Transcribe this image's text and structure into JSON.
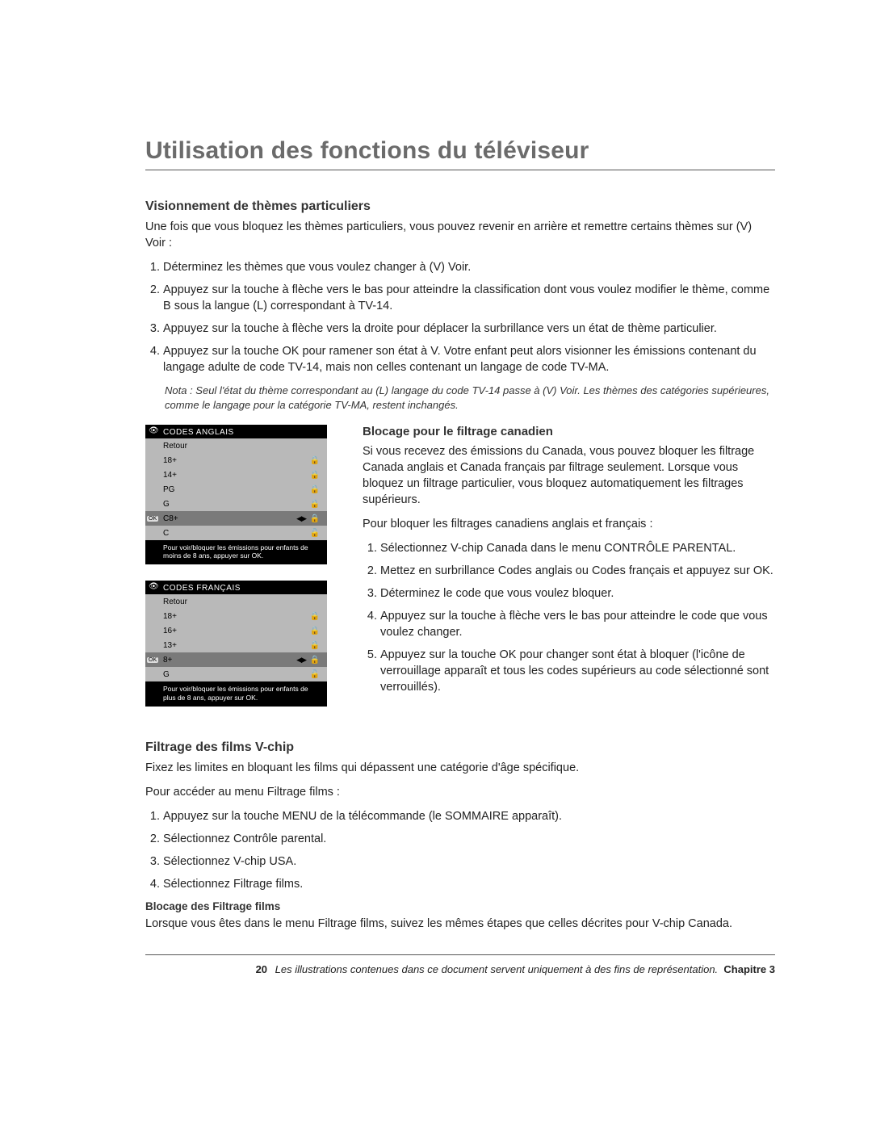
{
  "title": "Utilisation des fonctions du téléviseur",
  "s1": {
    "heading": "Visionnement de thèmes particuliers",
    "intro": "Une fois que vous bloquez les thèmes particuliers, vous pouvez revenir en arrière et remettre certains thèmes sur (V) Voir :",
    "items": [
      "Déterminez les thèmes que vous voulez changer à (V) Voir.",
      "Appuyez sur la touche à flèche vers le bas pour atteindre la classification dont vous voulez modifier le thème, comme B sous la langue (L) correspondant à TV-14.",
      "Appuyez sur la touche à flèche vers la droite pour déplacer la surbrillance vers un état de thème particulier.",
      "Appuyez sur la touche OK pour ramener son état à V. Votre enfant peut alors visionner les émissions contenant du langage adulte de code TV-14, mais non celles contenant un langage de code TV-MA."
    ],
    "note": "Nota : Seul l'état du thème correspondant au (L) langage du code TV-14 passe à (V) Voir. Les thèmes des catégories supérieures, comme le langage pour la catégorie TV-MA, restent inchangés."
  },
  "menu_en": {
    "title": "CODES ANGLAIS",
    "rows": [
      {
        "label": "Retour",
        "lock": "",
        "sel": false
      },
      {
        "label": "18+",
        "lock": "lock",
        "sel": false
      },
      {
        "label": "14+",
        "lock": "lock",
        "sel": false
      },
      {
        "label": "PG",
        "lock": "lock",
        "sel": false
      },
      {
        "label": "G",
        "lock": "lock",
        "sel": false
      },
      {
        "label": "C8+",
        "lock": "lock",
        "sel": true
      },
      {
        "label": "C",
        "lock": "unlock",
        "sel": false
      }
    ],
    "foot": "Pour voir/bloquer les émissions pour enfants de moins de 8 ans, appuyer sur OK."
  },
  "menu_fr": {
    "title": "CODES FRANÇAIS",
    "rows": [
      {
        "label": "Retour",
        "lock": "",
        "sel": false
      },
      {
        "label": "18+",
        "lock": "lock",
        "sel": false
      },
      {
        "label": "16+",
        "lock": "lock",
        "sel": false
      },
      {
        "label": "13+",
        "lock": "lock",
        "sel": false
      },
      {
        "label": "8+",
        "lock": "lock",
        "sel": true
      },
      {
        "label": "G",
        "lock": "unlock",
        "sel": false
      }
    ],
    "foot": "Pour voir/bloquer les émissions pour enfants de plus de 8 ans, appuyer sur OK."
  },
  "s2": {
    "heading": "Blocage pour le filtrage canadien",
    "p1": "Si vous recevez des émissions du Canada, vous pouvez bloquer les filtrage Canada anglais et Canada français par filtrage seulement. Lorsque vous bloquez un filtrage particulier, vous bloquez automatiquement les filtrages supérieurs.",
    "p2": "Pour bloquer les filtrages canadiens anglais et français :",
    "items": [
      "Sélectionnez V-chip Canada dans le menu CONTRÔLE PARENTAL.",
      "Mettez en surbrillance Codes anglais ou Codes français et appuyez sur OK.",
      "Déterminez le code que vous voulez bloquer.",
      "Appuyez sur la touche à flèche vers le bas pour atteindre le code que vous voulez changer.",
      "Appuyez sur la touche OK pour changer sont état à bloquer (l'icône de verrouillage apparaît et tous les codes supérieurs au code sélectionné sont verrouillés)."
    ]
  },
  "s3": {
    "heading": "Filtrage des films V-chip",
    "p1": "Fixez les limites en bloquant les films qui dépassent une catégorie d'âge spécifique.",
    "p2": "Pour accéder au menu Filtrage films :",
    "items": [
      "Appuyez sur la touche MENU de la télécommande (le SOMMAIRE apparaît).",
      "Sélectionnez Contrôle parental.",
      "Sélectionnez V-chip USA.",
      "Sélectionnez Filtrage films."
    ],
    "sub": "Blocage des Filtrage films",
    "p3": "Lorsque vous êtes dans le menu Filtrage films, suivez les mêmes étapes que celles décrites pour V-chip Canada."
  },
  "footer": {
    "page": "20",
    "text": "Les illustrations contenues dans ce document servent uniquement à des fins de représentation.",
    "chapter": "Chapitre 3"
  }
}
